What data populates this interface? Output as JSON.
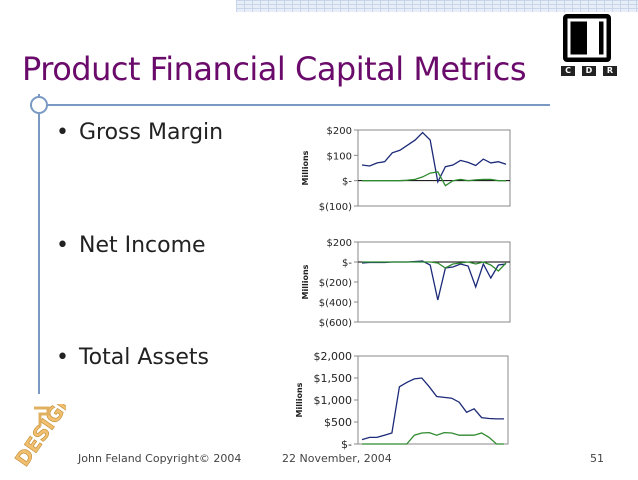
{
  "slide": {
    "title": "Product Financial Capital Metrics",
    "bullets": [
      "Gross Margin",
      "Net Income",
      "Total Assets"
    ],
    "footer_left": "John Feland Copyright© 2004",
    "footer_center": "22 November, 2004",
    "page_number": "51",
    "logo_letters": [
      "C",
      "D",
      "R"
    ],
    "design_logo_text": "DESIGN",
    "colors": {
      "title": "#6a0a6a",
      "series_dark": "#1c2a78",
      "series_green": "#2f8a2f",
      "rule": "#7a9ac4"
    }
  },
  "chart_data": [
    {
      "type": "line",
      "ylabel": "Millions",
      "yticks": [
        "$200",
        "$100",
        "$-",
        "$(100)"
      ],
      "ylim": [
        -100,
        200
      ],
      "x": [
        1,
        2,
        3,
        4,
        5,
        6,
        7,
        8,
        9,
        10,
        11,
        12,
        13,
        14,
        15,
        16,
        17,
        18,
        19,
        20
      ],
      "series": [
        {
          "values": [
            62,
            58,
            70,
            75,
            110,
            120,
            140,
            160,
            190,
            160,
            -5,
            55,
            62,
            80,
            72,
            60,
            85,
            70,
            75,
            65
          ]
        },
        {
          "values": [
            0,
            0,
            0,
            0,
            0,
            0,
            2,
            5,
            15,
            30,
            35,
            -20,
            0,
            5,
            0,
            3,
            5,
            5,
            0,
            0
          ]
        }
      ]
    },
    {
      "type": "line",
      "ylabel": "Millions",
      "yticks": [
        "$200",
        "$-",
        "$(200)",
        "$(400)",
        "$(600)"
      ],
      "ylim": [
        -600,
        200
      ],
      "x": [
        1,
        2,
        3,
        4,
        5,
        6,
        7,
        8,
        9,
        10,
        11,
        12,
        13,
        14,
        15,
        16,
        17,
        18,
        19,
        20
      ],
      "series": [
        {
          "values": [
            -10,
            -5,
            -5,
            -5,
            0,
            0,
            0,
            5,
            10,
            -30,
            -380,
            -60,
            -50,
            -20,
            -40,
            -250,
            -20,
            -160,
            -30,
            -20
          ]
        },
        {
          "values": [
            0,
            0,
            0,
            0,
            0,
            0,
            0,
            0,
            0,
            0,
            -10,
            -60,
            -20,
            -10,
            0,
            -20,
            0,
            -30,
            -90,
            -10
          ]
        }
      ]
    },
    {
      "type": "line",
      "ylabel": "Millions",
      "yticks": [
        "$2,000",
        "$1,500",
        "$1,000",
        "$500",
        "$-"
      ],
      "ylim": [
        0,
        2000
      ],
      "x": [
        1,
        2,
        3,
        4,
        5,
        6,
        7,
        8,
        9,
        10,
        11,
        12,
        13,
        14,
        15,
        16,
        17,
        18,
        19,
        20
      ],
      "series": [
        {
          "values": [
            100,
            150,
            150,
            200,
            250,
            1300,
            1400,
            1480,
            1500,
            1300,
            1080,
            1060,
            1040,
            950,
            720,
            800,
            600,
            580,
            570,
            570
          ]
        },
        {
          "values": [
            0,
            0,
            0,
            0,
            0,
            0,
            0,
            200,
            250,
            260,
            200,
            260,
            250,
            200,
            200,
            200,
            250,
            150,
            0,
            0
          ]
        }
      ]
    }
  ]
}
